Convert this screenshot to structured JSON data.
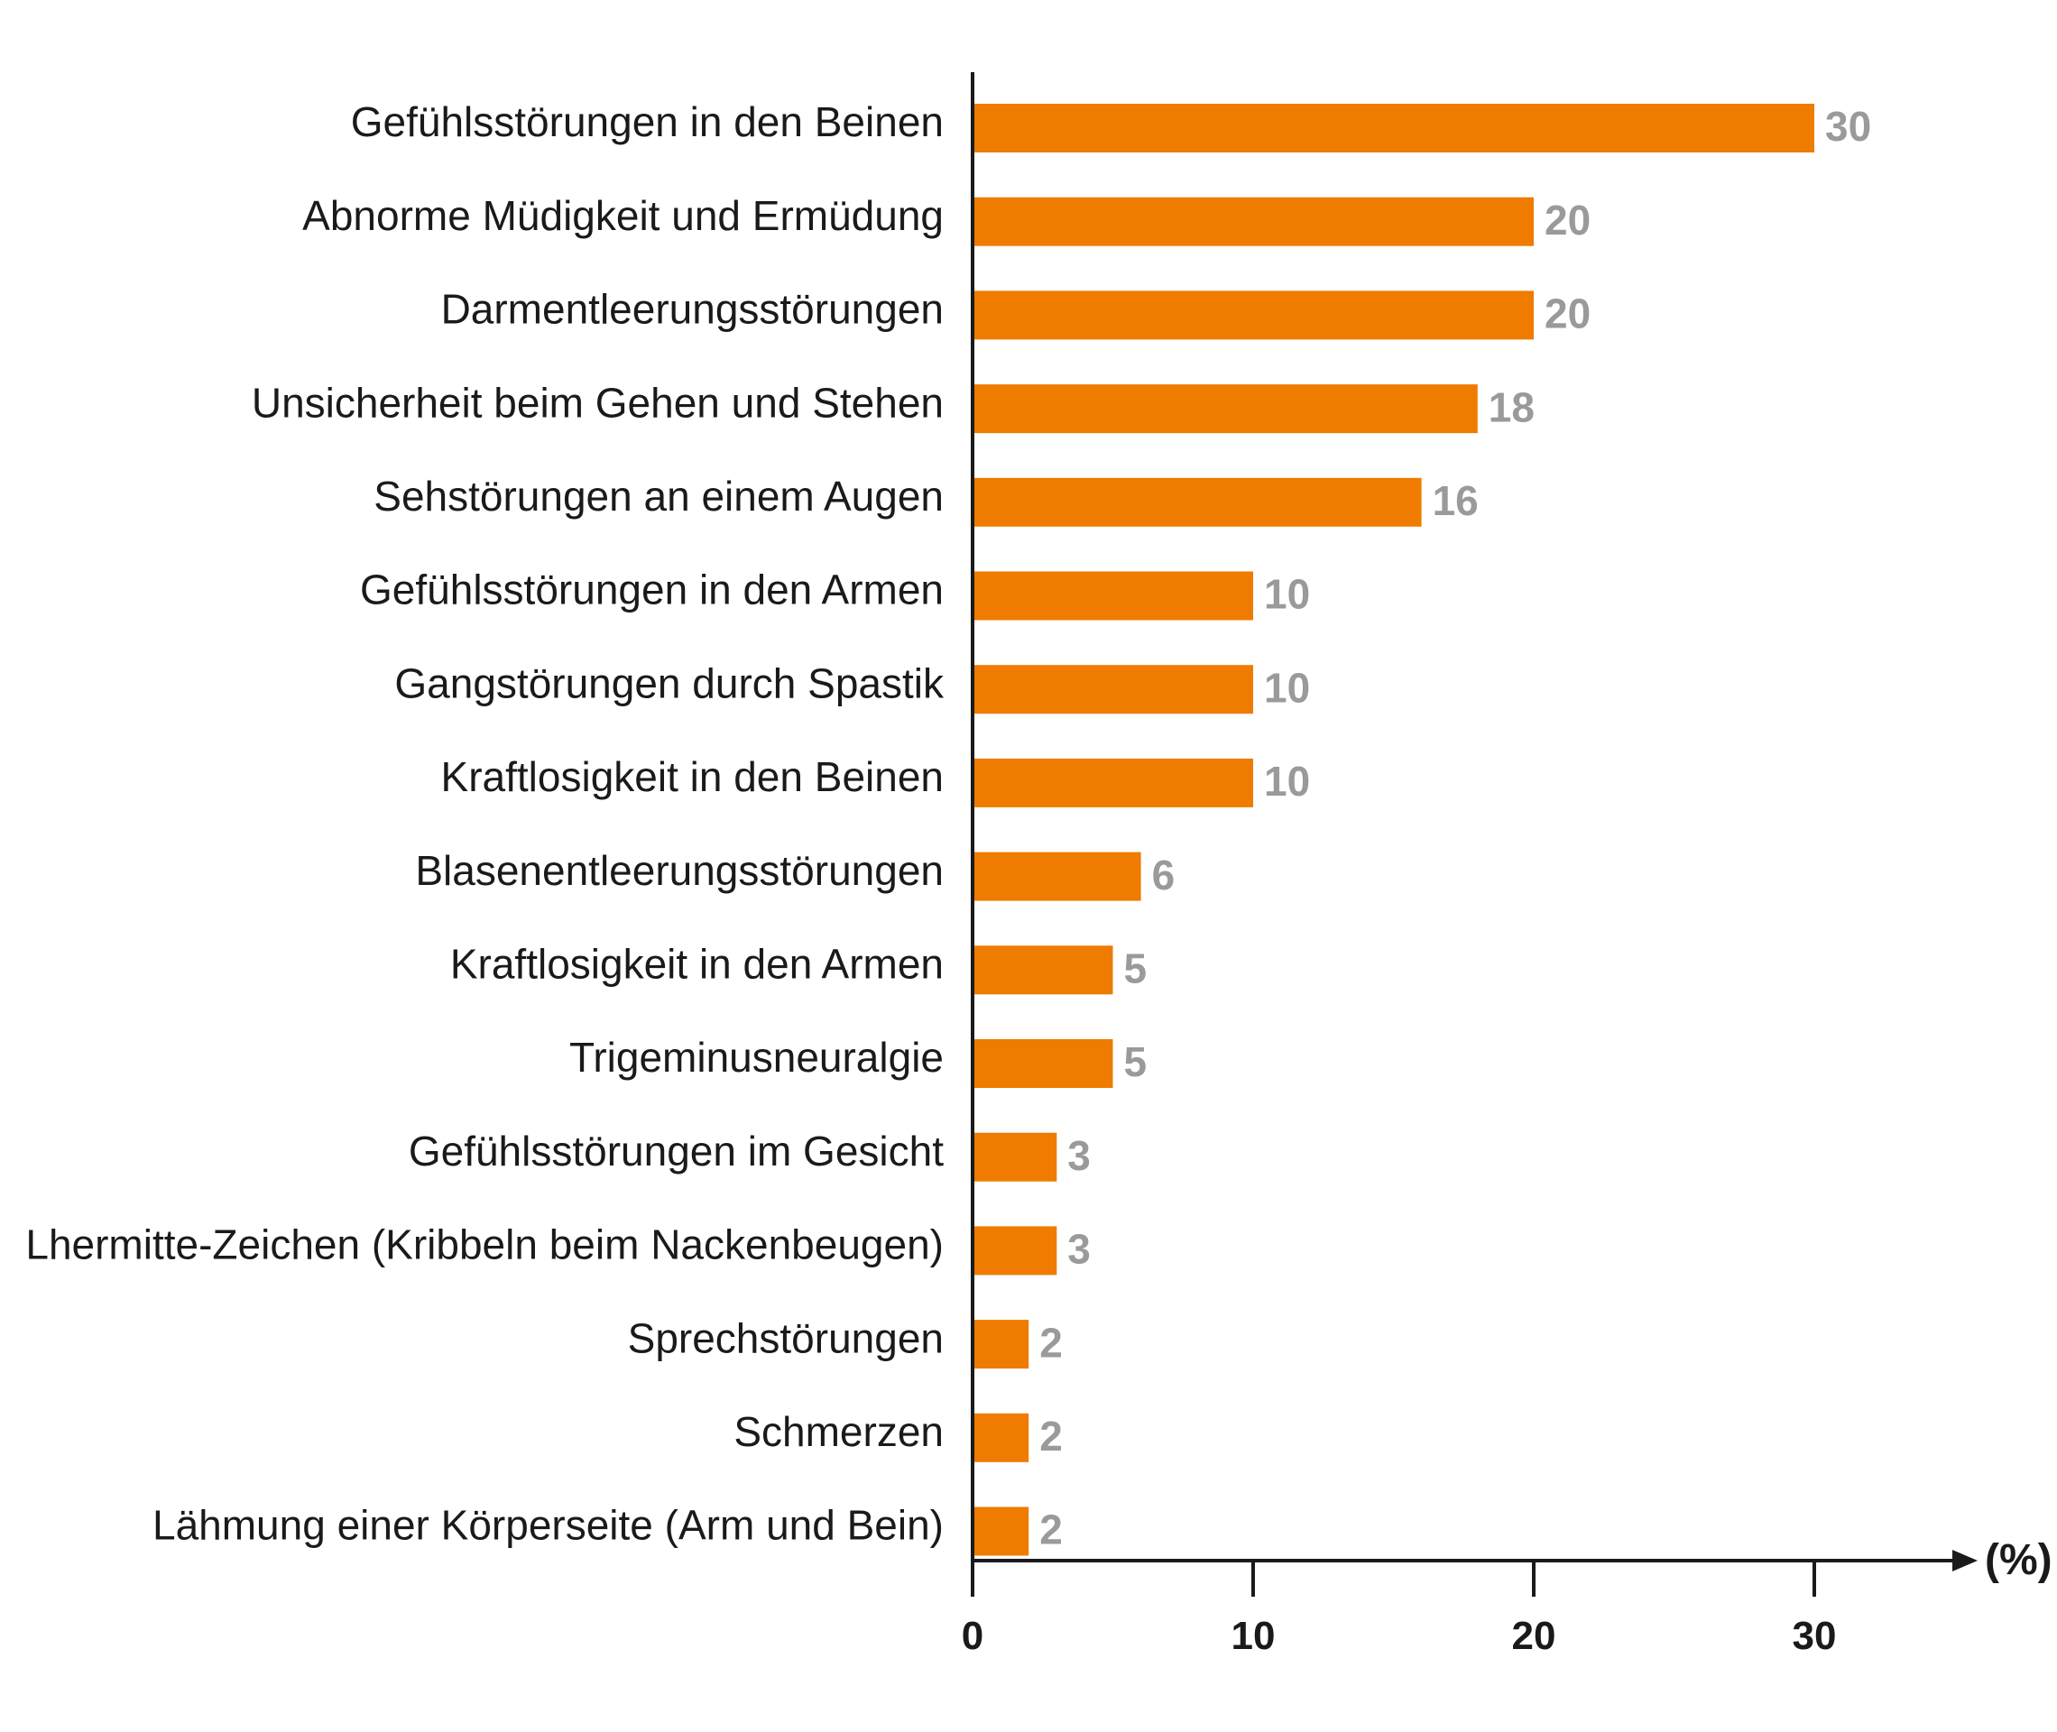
{
  "chart_data": {
    "type": "bar",
    "orientation": "horizontal",
    "categories": [
      "Gefühlsstörungen in den Beinen",
      "Abnorme Müdigkeit und Ermüdung",
      "Darmentleerungsstörungen",
      "Unsicherheit beim Gehen und Stehen",
      "Sehstörungen an einem Augen",
      "Gefühlsstörungen in den Armen",
      "Gangstörungen durch Spastik",
      "Kraftlosigkeit in den Beinen",
      "Blasenentleerungsstörungen",
      "Kraftlosigkeit in den Armen",
      "Trigeminusneuralgie",
      "Gefühlsstörungen im Gesicht",
      "Lhermitte-Zeichen (Kribbeln beim Nackenbeugen)",
      "Sprechstörungen",
      "Schmerzen",
      "Lähmung einer Körperseite (Arm und Bein)"
    ],
    "values": [
      30,
      20,
      20,
      18,
      16,
      10,
      10,
      10,
      6,
      5,
      5,
      3,
      3,
      2,
      2,
      2
    ],
    "value_labels": [
      "30",
      "20",
      "20",
      "18",
      "16",
      "10",
      "10",
      "10",
      "6",
      "5",
      "5",
      "3",
      "3",
      "2",
      "2",
      "2"
    ],
    "x_ticks": [
      "0",
      "10",
      "20",
      "30"
    ],
    "x_tick_values": [
      0,
      10,
      20,
      30
    ],
    "xlim": [
      0,
      36
    ],
    "xlabel": "(%)",
    "ylabel": "",
    "title": "",
    "grid": false,
    "legend": false,
    "colors": {
      "bar": "#EF7B00",
      "value_label": "#9a9a9a",
      "axis": "#1a1a1a",
      "text": "#1a1a1a"
    }
  }
}
